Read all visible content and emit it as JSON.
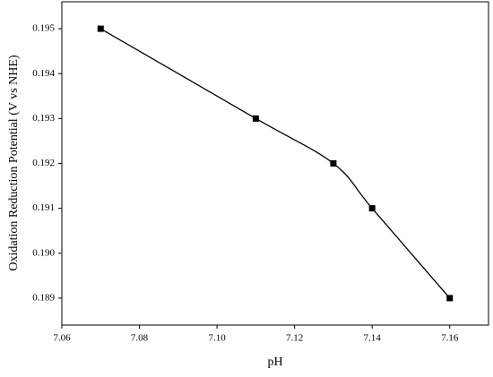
{
  "chart_data": {
    "type": "line",
    "x_label": "pH",
    "y_label": "Oxidation Reduction Potential (V vs NHE)",
    "x": [
      7.07,
      7.11,
      7.13,
      7.14,
      7.16
    ],
    "series": [
      {
        "color": "#000000",
        "values": [
          0.195,
          0.193,
          0.192,
          0.191,
          0.189
        ]
      }
    ],
    "xlim": [
      7.06,
      7.17
    ],
    "xticks": [
      7.06,
      7.08,
      {
        "value": 7.1,
        "label": "7.10"
      },
      7.12,
      7.14,
      7.16
    ],
    "ylim": [
      0.1884,
      0.1956
    ],
    "yticks": [
      0.189,
      {
        "value": 0.19,
        "label": "0.190"
      },
      0.191,
      0.192,
      0.193,
      0.194,
      0.195
    ],
    "smooth": true
  }
}
